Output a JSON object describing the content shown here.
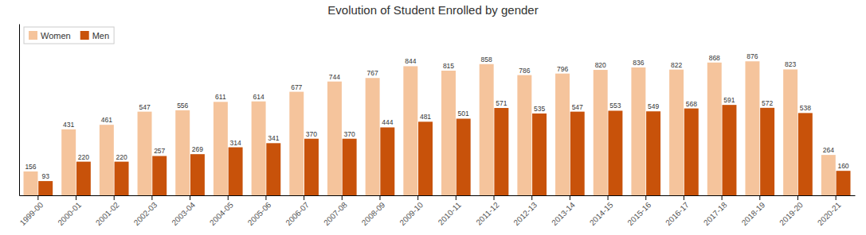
{
  "chart_data": {
    "type": "bar",
    "title": "Evolution of Student Enrolled by gender",
    "categories": [
      "1999-00",
      "2000-01",
      "2001-02",
      "2002-03",
      "2003-04",
      "2004-05",
      "2005-06",
      "2006-07",
      "2007-08",
      "2008-09",
      "2009-10",
      "2010-11",
      "2011-12",
      "2012-13",
      "2013-14",
      "2014-15",
      "2015-16",
      "2016-17",
      "2017-18",
      "2018-19",
      "2019-20",
      "2020-21"
    ],
    "series": [
      {
        "name": "Women",
        "color": "#F5C49C",
        "values": [
          156,
          431,
          461,
          547,
          556,
          611,
          614,
          677,
          744,
          767,
          844,
          815,
          858,
          786,
          796,
          820,
          836,
          822,
          868,
          876,
          823,
          264
        ]
      },
      {
        "name": "Men",
        "color": "#C8520A",
        "values": [
          93,
          220,
          220,
          257,
          269,
          314,
          341,
          370,
          370,
          444,
          481,
          501,
          571,
          535,
          547,
          553,
          549,
          568,
          591,
          572,
          538,
          160
        ]
      }
    ],
    "ylim": [
      0,
      1121.28
    ],
    "data_labels": true,
    "tick_labels": "x",
    "legend": "upper left",
    "grid": false
  }
}
